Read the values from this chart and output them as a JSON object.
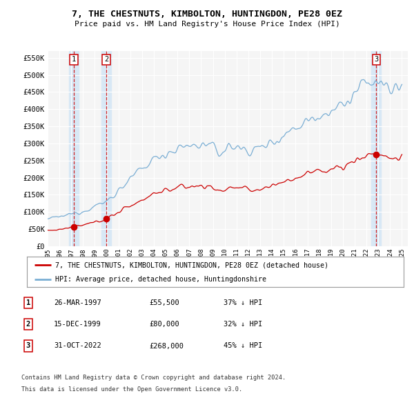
{
  "title": "7, THE CHESTNUTS, KIMBOLTON, HUNTINGDON, PE28 0EZ",
  "subtitle": "Price paid vs. HM Land Registry's House Price Index (HPI)",
  "ylim": [
    0,
    570000
  ],
  "yticks": [
    0,
    50000,
    100000,
    150000,
    200000,
    250000,
    300000,
    350000,
    400000,
    450000,
    500000,
    550000
  ],
  "ytick_labels": [
    "£0",
    "£50K",
    "£100K",
    "£150K",
    "£200K",
    "£250K",
    "£300K",
    "£350K",
    "£400K",
    "£450K",
    "£500K",
    "£550K"
  ],
  "xlim_start": 1995.0,
  "xlim_end": 2025.5,
  "sale_dates_num": [
    1997.23,
    1999.96,
    2022.83
  ],
  "sale_prices": [
    55500,
    80000,
    268000
  ],
  "sale_labels": [
    "1",
    "2",
    "3"
  ],
  "sale_color": "#cc0000",
  "hpi_color": "#7aaed4",
  "hpi_shade_color": "#d8e8f5",
  "vline_color": "#cc0000",
  "background_color": "#ffffff",
  "chart_bg_color": "#f5f5f5",
  "grid_color": "#ffffff",
  "legend_line1": "7, THE CHESTNUTS, KIMBOLTON, HUNTINGDON, PE28 0EZ (detached house)",
  "legend_line2": "HPI: Average price, detached house, Huntingdonshire",
  "table_entries": [
    {
      "num": "1",
      "date": "26-MAR-1997",
      "price": "£55,500",
      "hpi": "37% ↓ HPI"
    },
    {
      "num": "2",
      "date": "15-DEC-1999",
      "price": "£80,000",
      "hpi": "32% ↓ HPI"
    },
    {
      "num": "3",
      "date": "31-OCT-2022",
      "price": "£268,000",
      "hpi": "45% ↓ HPI"
    }
  ],
  "footnote1": "Contains HM Land Registry data © Crown copyright and database right 2024.",
  "footnote2": "This data is licensed under the Open Government Licence v3.0."
}
